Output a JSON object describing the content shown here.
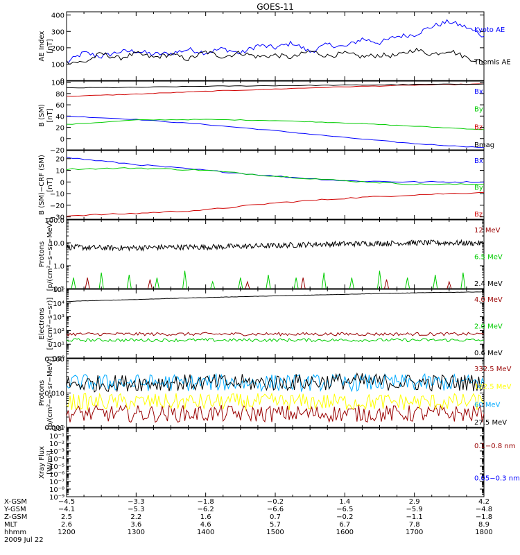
{
  "title": "GOES-11",
  "colors": {
    "blue": "#0000ff",
    "black": "#000000",
    "red": "#d00000",
    "green": "#00cc00",
    "darkred": "#990000",
    "yellow": "#ffff00",
    "cyan": "#00aaff"
  },
  "chart_data": [
    {
      "type": "line",
      "ylabel": [
        "AE Index",
        "[nT]"
      ],
      "scale": "linear",
      "ylim": [
        0,
        420
      ],
      "yticks": [
        0,
        100,
        200,
        300,
        400
      ],
      "yticklabels": [
        "0",
        "100",
        "200",
        "300",
        "400"
      ],
      "series": [
        {
          "name": "Kyoto AE",
          "color": "blue",
          "x": [
            0,
            0.25,
            0.5,
            0.75,
            1.0,
            1.25,
            1.5,
            1.75,
            2.0,
            2.25,
            2.5,
            2.75,
            3.0,
            3.25,
            3.5,
            3.75,
            4.0,
            4.25,
            4.5,
            4.75,
            5.0,
            5.25,
            5.5,
            5.75,
            6.0
          ],
          "values": [
            110,
            170,
            145,
            175,
            180,
            160,
            165,
            190,
            170,
            195,
            165,
            215,
            200,
            230,
            175,
            220,
            205,
            255,
            230,
            270,
            280,
            330,
            360,
            325,
            270
          ]
        },
        {
          "name": "Themis AE",
          "color": "black",
          "x": [
            0,
            0.25,
            0.5,
            0.75,
            1.0,
            1.25,
            1.5,
            1.75,
            2.0,
            2.25,
            2.5,
            2.75,
            3.0,
            3.25,
            3.5,
            3.75,
            4.0,
            4.25,
            4.5,
            4.75,
            5.0,
            5.25,
            5.5,
            5.75,
            6.0
          ],
          "values": [
            115,
            110,
            165,
            135,
            165,
            140,
            160,
            130,
            175,
            145,
            170,
            145,
            155,
            140,
            180,
            150,
            165,
            145,
            155,
            150,
            190,
            160,
            185,
            140,
            110
          ]
        }
      ]
    },
    {
      "type": "line",
      "ylabel": [
        "B (SM)",
        "[nT]"
      ],
      "scale": "linear",
      "ylim": [
        -20,
        102
      ],
      "yticks": [
        -20,
        0,
        20,
        40,
        60,
        80,
        100
      ],
      "yticklabels": [
        "−20",
        "0",
        "20",
        "40",
        "60",
        "80",
        "100"
      ],
      "series": [
        {
          "name": "Bx",
          "color": "blue",
          "x": [
            0,
            1,
            2,
            3,
            4,
            5,
            6
          ],
          "values": [
            40,
            34,
            25,
            14,
            2,
            -9,
            -16
          ]
        },
        {
          "name": "By",
          "color": "green",
          "x": [
            0,
            1,
            2,
            3,
            4,
            5,
            6
          ],
          "values": [
            25,
            33,
            34,
            32,
            28,
            22,
            16
          ]
        },
        {
          "name": "Bz",
          "color": "red",
          "x": [
            0,
            1,
            2,
            3,
            4,
            5,
            6
          ],
          "values": [
            75,
            79,
            84,
            88,
            92,
            95,
            97
          ]
        },
        {
          "name": "Bmag",
          "color": "black",
          "x": [
            0,
            1,
            2,
            3,
            4,
            5,
            6
          ],
          "values": [
            90,
            91,
            93,
            94,
            95,
            96,
            97
          ]
        }
      ]
    },
    {
      "type": "line",
      "ylabel": [
        "B (SM)−CRF (SM)",
        "[nT]"
      ],
      "scale": "linear",
      "ylim": [
        -32,
        27
      ],
      "yticks": [
        -30,
        -20,
        -10,
        0,
        10,
        20
      ],
      "yticklabels": [
        "−30",
        "−20",
        "−10",
        "0",
        "10",
        "20"
      ],
      "series": [
        {
          "name": "Bx",
          "color": "blue",
          "x": [
            0,
            1,
            2,
            3,
            4,
            5,
            6
          ],
          "values": [
            21,
            15,
            10,
            5,
            1,
            0,
            0
          ]
        },
        {
          "name": "By",
          "color": "green",
          "x": [
            0,
            1,
            2,
            3,
            4,
            5,
            6
          ],
          "values": [
            11,
            12,
            10,
            5,
            1,
            -2,
            -2
          ]
        },
        {
          "name": "Bz",
          "color": "red",
          "x": [
            0,
            1,
            2,
            3,
            4,
            5,
            6
          ],
          "values": [
            -29,
            -27,
            -24,
            -18,
            -14,
            -11,
            -9
          ]
        }
      ]
    },
    {
      "type": "line",
      "ylabel": [
        "Protons",
        "[p/(cm²−s−sr−MeV)]"
      ],
      "scale": "log",
      "ylim": [
        0.1,
        100
      ],
      "yticks": [
        0.1,
        1,
        10,
        100
      ],
      "yticklabels": [
        "0.1",
        "1.0",
        "10.0",
        "100.0"
      ],
      "series": [
        {
          "name": "12 MeV",
          "color": "darkred",
          "x": [
            0.3,
            1.2,
            2.6,
            3.4,
            4.6,
            5.5
          ],
          "values": [
            0.3,
            0.25,
            0.2,
            0.3,
            0.25,
            0.2
          ]
        },
        {
          "name": "6.5 MeV",
          "color": "green",
          "x": [
            0.1,
            0.5,
            0.9,
            1.3,
            1.7,
            2.1,
            2.5,
            2.9,
            3.3,
            3.7,
            4.1,
            4.5,
            4.9,
            5.3,
            5.7
          ],
          "values": [
            0.3,
            0.5,
            0.4,
            0.3,
            0.6,
            0.2,
            0.3,
            0.4,
            0.3,
            0.5,
            0.3,
            0.6,
            0.3,
            0.4,
            0.5
          ]
        },
        {
          "name": "2.4 MeV",
          "color": "black",
          "x": [
            0,
            0.5,
            1.0,
            1.5,
            2.0,
            2.5,
            3.0,
            3.5,
            4.0,
            4.5,
            5.0,
            5.5,
            6.0
          ],
          "values": [
            6.5,
            6,
            6,
            6.5,
            6.5,
            7,
            7.5,
            8.5,
            9,
            9.5,
            10,
            10,
            9.5
          ]
        }
      ]
    },
    {
      "type": "line",
      "ylabel": [
        "Electrons",
        "[e/(cm²−s−sr)]"
      ],
      "scale": "log",
      "ylim": [
        1,
        100000
      ],
      "yticks": [
        1,
        10,
        100,
        1000,
        10000,
        100000
      ],
      "yticklabels": [
        "10⁰",
        "10¹",
        "10²",
        "10³",
        "10⁴",
        "10⁵"
      ],
      "series": [
        {
          "name": "4.0 MeV",
          "color": "darkred",
          "x": [
            0,
            1,
            2,
            3,
            4,
            5,
            6
          ],
          "values": [
            55,
            55,
            55,
            55,
            55,
            55,
            55
          ]
        },
        {
          "name": "2.0 MeV",
          "color": "green",
          "x": [
            0,
            1,
            2,
            3,
            4,
            5,
            6
          ],
          "values": [
            20,
            20,
            20,
            20,
            20,
            20,
            20
          ]
        },
        {
          "name": "0.6 MeV",
          "color": "black",
          "x": [
            0,
            1,
            2,
            3,
            4,
            5,
            6
          ],
          "values": [
            13000,
            18000,
            25000,
            33000,
            43000,
            55000,
            65000
          ]
        }
      ]
    },
    {
      "type": "line",
      "ylabel": [
        "Protons",
        "[p/(cm²−s−sr−MeV)]"
      ],
      "scale": "log",
      "ylim": [
        0.001,
        0.1
      ],
      "yticks": [
        0.001,
        0.01,
        0.1
      ],
      "yticklabels": [
        "0.001",
        "0.010",
        "0.100"
      ],
      "series": [
        {
          "name": "332.5 MeV",
          "color": "darkred",
          "x": [
            0,
            1,
            2,
            3,
            4,
            5,
            6
          ],
          "values": [
            0.0025,
            0.0025,
            0.0025,
            0.0025,
            0.0025,
            0.0025,
            0.0025
          ]
        },
        {
          "name": "122.5 MeV",
          "color": "yellow",
          "x": [
            0,
            1,
            2,
            3,
            4,
            5,
            6
          ],
          "values": [
            0.0055,
            0.0055,
            0.0055,
            0.0055,
            0.0055,
            0.0055,
            0.0055
          ]
        },
        {
          "name": "60 MeV",
          "color": "cyan",
          "x": [
            0,
            1,
            2,
            3,
            4,
            5,
            6
          ],
          "values": [
            0.02,
            0.02,
            0.02,
            0.02,
            0.02,
            0.02,
            0.02
          ]
        },
        {
          "name": "27.5 MeV",
          "color": "black",
          "x": [
            0,
            1,
            2,
            3,
            4,
            5,
            6
          ],
          "values": [
            0.018,
            0.02,
            0.02,
            0.02,
            0.022,
            0.02,
            0.02
          ]
        }
      ]
    },
    {
      "type": "line",
      "ylabel": [
        "Xray Flux",
        "[W/m²]"
      ],
      "scale": "log",
      "ylim": [
        1e-09,
        1
      ],
      "yticks": [
        1e-09,
        1e-08,
        1e-07,
        1e-06,
        1e-05,
        0.0001,
        0.001,
        0.01,
        0.1,
        1
      ],
      "yticklabels": [
        "10⁻⁹",
        "10⁻⁸",
        "10⁻⁷",
        "10⁻⁶",
        "10⁻⁵",
        "10⁻⁴",
        "10⁻³",
        "10⁻²",
        "10⁻¹",
        "10⁰"
      ],
      "legend": [
        {
          "name": "0.1−0.8 nm",
          "color": "darkred"
        },
        {
          "name": "0.05−0.3 nm",
          "color": "blue"
        }
      ],
      "series": []
    }
  ],
  "x_axis": {
    "range": [
      0,
      6
    ],
    "major_ticks": [
      0,
      1,
      2,
      3,
      4,
      5,
      6
    ],
    "rows": [
      {
        "label": "X-GSM",
        "values": [
          "−4.5",
          "−3.3",
          "−1.8",
          "−0.2",
          "1.4",
          "2.9",
          "4.2"
        ]
      },
      {
        "label": "Y-GSM",
        "values": [
          "−4.1",
          "−5.3",
          "−6.2",
          "−6.6",
          "−6.5",
          "−5.9",
          "−4.8"
        ]
      },
      {
        "label": "Z-GSM",
        "values": [
          "2.5",
          "2.2",
          "1.6",
          "0.7",
          "−0.2",
          "−1.1",
          "−1.8"
        ]
      },
      {
        "label": "MLT",
        "values": [
          "2.6",
          "3.6",
          "4.6",
          "5.7",
          "6.7",
          "7.8",
          "8.9"
        ]
      },
      {
        "label": "hhmm",
        "values": [
          "1200",
          "1300",
          "1400",
          "1500",
          "1600",
          "1700",
          "1800"
        ]
      }
    ],
    "date": "2009 Jul 22"
  }
}
